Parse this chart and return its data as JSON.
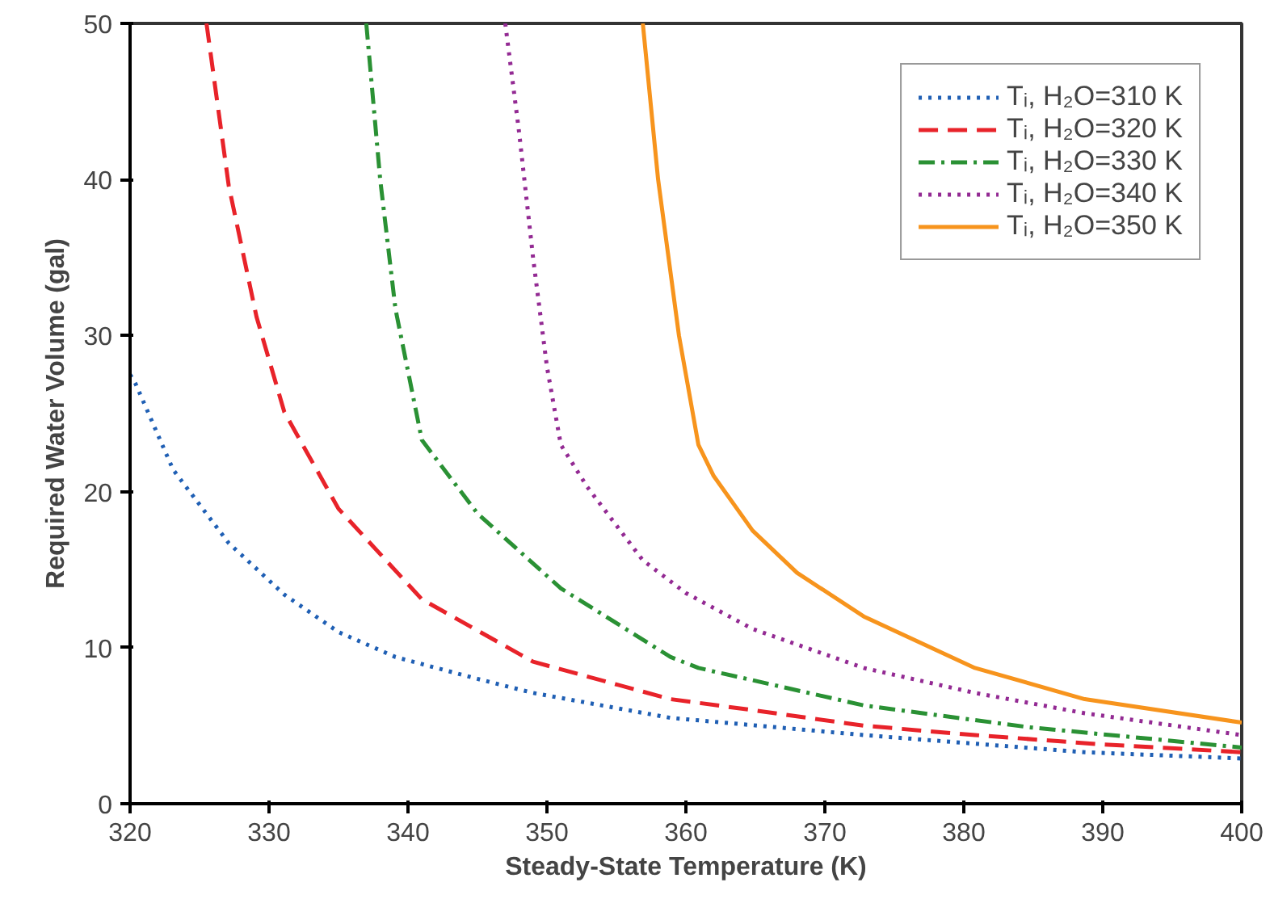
{
  "chart_data": {
    "type": "line",
    "xlabel": "Steady-State Temperature (K)",
    "ylabel": "Required Water Volume (gal)",
    "xlim": [
      320,
      400
    ],
    "ylim": [
      0,
      50
    ],
    "xticks": [
      320,
      330,
      340,
      350,
      360,
      370,
      380,
      390,
      400
    ],
    "yticks": [
      0,
      10,
      20,
      30,
      40,
      50
    ],
    "grid": false,
    "legend": "top right",
    "series": [
      {
        "name": "Tᵢ, H₂O=310 K",
        "color": "#1f5fb4",
        "line_style": "dotted",
        "x": [
          320,
          320.4,
          323.1,
          327.1,
          331.1,
          335,
          339.1,
          345,
          349,
          358.9,
          372.8,
          388.7,
          400
        ],
        "values": [
          27.5,
          26.9,
          21.4,
          16.7,
          13.4,
          11.0,
          9.4,
          8.0,
          7.1,
          5.5,
          4.4,
          3.3,
          2.9
        ]
      },
      {
        "name": "Tᵢ, H₂O=320 K",
        "color": "#e8232a",
        "line_style": "dashed",
        "x": [
          325.5,
          327.1,
          329.1,
          331.1,
          335,
          341,
          349,
          358.9,
          364.8,
          372.8,
          380.8,
          390,
          400
        ],
        "values": [
          50,
          39.6,
          31.2,
          25.1,
          18.9,
          13.1,
          9.1,
          6.7,
          6.0,
          5.0,
          4.4,
          3.8,
          3.3
        ]
      },
      {
        "name": "Tᵢ, H₂O=330 K",
        "color": "#2a9134",
        "line_style": "dashdot",
        "x": [
          337,
          338,
          339.1,
          341,
          345,
          351,
          358.9,
          360.9,
          372.8,
          384.7,
          400
        ],
        "values": [
          50,
          40,
          31.7,
          23.3,
          18.6,
          13.8,
          9.4,
          8.7,
          6.3,
          4.9,
          3.6
        ]
      },
      {
        "name": "Tᵢ, H₂O=340 K",
        "color": "#932a93",
        "line_style": "dotted",
        "x": [
          347,
          348,
          349,
          350,
          351,
          352.9,
          356.9,
          360,
          364.8,
          372.8,
          380.8,
          388.7,
          400
        ],
        "values": [
          50,
          43,
          35,
          28,
          23,
          20.3,
          15.6,
          13.5,
          11.2,
          8.7,
          7.1,
          5.8,
          4.4
        ]
      },
      {
        "name": "Tᵢ, H₂O=350 K",
        "color": "#f7941d",
        "line_style": "solid",
        "x": [
          356.9,
          358,
          359.5,
          360.9,
          362,
          364.8,
          368,
          372.8,
          380.8,
          388.7,
          400
        ],
        "values": [
          50,
          40,
          30,
          23,
          21,
          17.5,
          14.8,
          12,
          8.7,
          6.7,
          5.2
        ]
      }
    ]
  }
}
